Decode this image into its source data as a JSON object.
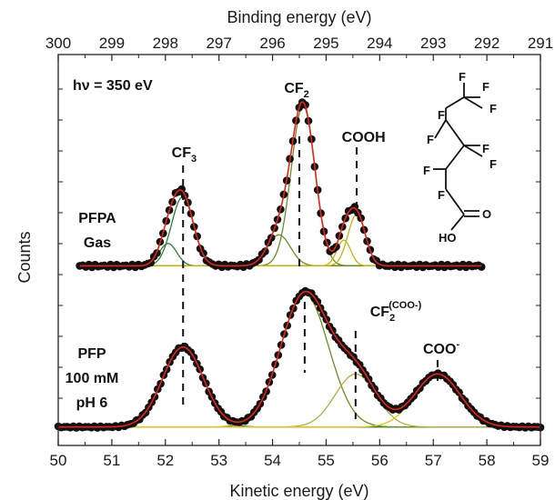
{
  "chart_data": {
    "type": "line",
    "xlabel": "Kinetic energy (eV)",
    "x2label": "Binding energy (eV)",
    "ylabel": "Counts",
    "xlim": [
      50,
      59
    ],
    "x2lim": [
      300,
      291
    ],
    "x_ticks": [
      "50",
      "51",
      "52",
      "53",
      "54",
      "55",
      "56",
      "57",
      "58",
      "59"
    ],
    "x2_ticks": [
      "300",
      "299",
      "298",
      "297",
      "296",
      "295",
      "294",
      "293",
      "292",
      "291"
    ],
    "photon_energy_label": "hν = 350 eV",
    "y_ticks_unlabeled": true,
    "panels": [
      {
        "id": "gas",
        "label_lines": [
          "PFPA",
          "Gas"
        ],
        "x_range": [
          50.4,
          57.9
        ],
        "baseline_height": 0.045,
        "peaks": [
          {
            "label": "CF",
            "subscript": "3",
            "superscript": "",
            "color": "#2e7d3a",
            "center": 52.32,
            "height": 0.4,
            "fwhm": 0.48
          },
          {
            "label": "",
            "subscript": "",
            "superscript": "",
            "color": "#2e7d3a",
            "center": 52.05,
            "height": 0.13,
            "fwhm": 0.38
          },
          {
            "label": "CF",
            "subscript": "2",
            "superscript": "",
            "color": "#6b8e23",
            "center": 54.57,
            "height": 0.93,
            "fwhm": 0.52
          },
          {
            "label": "",
            "subscript": "",
            "superscript": "",
            "color": "#6b8e23",
            "center": 54.12,
            "height": 0.18,
            "fwhm": 0.5
          },
          {
            "label": "COOH",
            "subscript": "",
            "superscript": "",
            "color": "#c9b30c",
            "center": 55.57,
            "height": 0.3,
            "fwhm": 0.38
          },
          {
            "label": "",
            "subscript": "",
            "superscript": "",
            "color": "#c9b30c",
            "center": 55.33,
            "height": 0.15,
            "fwhm": 0.3
          }
        ]
      },
      {
        "id": "solution",
        "label_lines": [
          "PFP",
          "100 mM",
          "pH 6"
        ],
        "x_range": [
          50,
          59
        ],
        "baseline_height": 0.03,
        "peaks": [
          {
            "label": "",
            "subscript": "",
            "superscript": "",
            "color": "#2e7d3a",
            "center": 52.33,
            "height": 0.8,
            "fwhm": 0.9
          },
          {
            "label": "",
            "subscript": "",
            "superscript": "",
            "color": "#6b8e23",
            "center": 54.6,
            "height": 1.33,
            "fwhm": 1.05
          },
          {
            "label": "CF",
            "subscript": "2",
            "superscript": "(COO-)",
            "color": "#b5ab3c",
            "center": 55.55,
            "height": 0.53,
            "fwhm": 0.9
          },
          {
            "label": "COO",
            "subscript": "",
            "superscript": "-",
            "color": "#e2c21a",
            "center": 57.08,
            "height": 0.53,
            "fwhm": 1.0
          }
        ]
      }
    ],
    "fit_line_color": "#e3251b",
    "data_marker_color": "#111111",
    "dashed_guides_at": [
      52.33,
      54.57,
      55.57,
      54.6,
      55.55,
      57.08
    ]
  },
  "molecule": {
    "atoms": [
      "F",
      "F",
      "F",
      "F",
      "F",
      "F",
      "F",
      "F",
      "F",
      "O",
      "HO"
    ]
  }
}
